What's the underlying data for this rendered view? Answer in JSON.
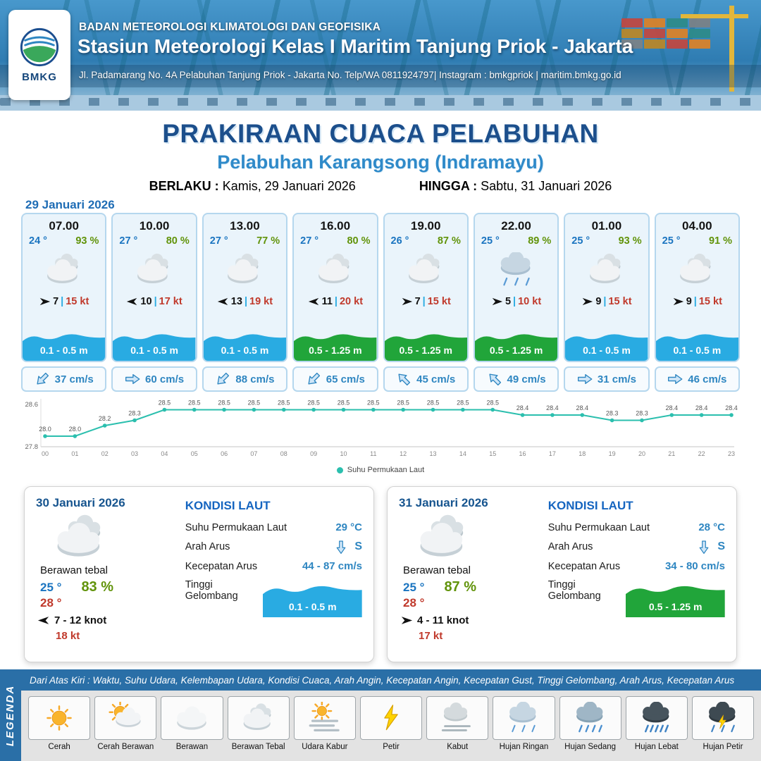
{
  "header": {
    "logo_text": "BMKG",
    "org": "BADAN METEOROLOGI KLIMATOLOGI DAN GEOFISIKA",
    "station": "Stasiun Meteorologi Kelas I Maritim Tanjung Priok - Jakarta",
    "address": "Jl. Padamarang No. 4A Pelabuhan Tanjung Priok - Jakarta No. Telp/WA 0811924797| Instagram : bmkgpriok | maritim.bmkg.go.id"
  },
  "title": {
    "main": "PRAKIRAAN CUACA PELABUHAN",
    "sub": "Pelabuhan Karangsong (Indramayu)",
    "valid_label": "BERLAKU :",
    "valid_value": "Kamis, 29 Januari 2026",
    "until_label": "HINGGA :",
    "until_value": "Sabtu, 31 Januari 2026"
  },
  "labels": {
    "wind_separator": "|"
  },
  "forecast": {
    "date": "29 Januari 2026",
    "cards": [
      {
        "time": "07.00",
        "temp": "24 °",
        "humidity": "93 %",
        "icon": "berawan-tebal",
        "wind_speed": "7",
        "wind_gust": "15 kt",
        "wind_dir_deg": 0,
        "wave": "0.1 - 0.5 m",
        "wave_level": "low",
        "current_speed": "37 cm/s",
        "current_dir_deg": 135
      },
      {
        "time": "10.00",
        "temp": "27 °",
        "humidity": "80 %",
        "icon": "berawan-tebal",
        "wind_speed": "10",
        "wind_gust": "17 kt",
        "wind_dir_deg": 180,
        "wave": "0.1 - 0.5 m",
        "wave_level": "low",
        "current_speed": "60 cm/s",
        "current_dir_deg": 0
      },
      {
        "time": "13.00",
        "temp": "27 °",
        "humidity": "77 %",
        "icon": "berawan-tebal",
        "wind_speed": "13",
        "wind_gust": "19 kt",
        "wind_dir_deg": 180,
        "wave": "0.1 - 0.5 m",
        "wave_level": "low",
        "current_speed": "88 cm/s",
        "current_dir_deg": 135
      },
      {
        "time": "16.00",
        "temp": "27 °",
        "humidity": "80 %",
        "icon": "berawan-tebal",
        "wind_speed": "11",
        "wind_gust": "20 kt",
        "wind_dir_deg": 180,
        "wave": "0.5 - 1.25 m",
        "wave_level": "mid",
        "current_speed": "65 cm/s",
        "current_dir_deg": 135
      },
      {
        "time": "19.00",
        "temp": "26 °",
        "humidity": "87 %",
        "icon": "berawan-tebal",
        "wind_speed": "7",
        "wind_gust": "15 kt",
        "wind_dir_deg": 0,
        "wave": "0.5 - 1.25 m",
        "wave_level": "mid",
        "current_speed": "45 cm/s",
        "current_dir_deg": 225
      },
      {
        "time": "22.00",
        "temp": "25 °",
        "humidity": "89 %",
        "icon": "hujan-ringan",
        "wind_speed": "5",
        "wind_gust": "10 kt",
        "wind_dir_deg": 0,
        "wave": "0.5 - 1.25 m",
        "wave_level": "mid",
        "current_speed": "49 cm/s",
        "current_dir_deg": 225
      },
      {
        "time": "01.00",
        "temp": "25 °",
        "humidity": "93 %",
        "icon": "berawan-tebal",
        "wind_speed": "9",
        "wind_gust": "15 kt",
        "wind_dir_deg": 0,
        "wave": "0.1 - 0.5 m",
        "wave_level": "low",
        "current_speed": "31 cm/s",
        "current_dir_deg": 0
      },
      {
        "time": "04.00",
        "temp": "25 °",
        "humidity": "91 %",
        "icon": "berawan-tebal",
        "wind_speed": "9",
        "wind_gust": "15 kt",
        "wind_dir_deg": 0,
        "wave": "0.1 - 0.5 m",
        "wave_level": "low",
        "current_speed": "46 cm/s",
        "current_dir_deg": 0
      }
    ]
  },
  "chart_data": {
    "type": "line",
    "series_name": "Suhu Permukaan Laut",
    "x": [
      "00",
      "01",
      "02",
      "03",
      "04",
      "05",
      "06",
      "07",
      "08",
      "09",
      "10",
      "11",
      "12",
      "13",
      "14",
      "15",
      "16",
      "17",
      "18",
      "19",
      "20",
      "21",
      "22",
      "23"
    ],
    "values": [
      28.0,
      28.0,
      28.2,
      28.3,
      28.5,
      28.5,
      28.5,
      28.5,
      28.5,
      28.5,
      28.5,
      28.5,
      28.5,
      28.5,
      28.5,
      28.5,
      28.4,
      28.4,
      28.4,
      28.3,
      28.3,
      28.4,
      28.4,
      28.4
    ],
    "ylim": [
      27.8,
      28.6
    ],
    "yticks": [
      27.8,
      28.6
    ],
    "xlabel": "",
    "ylabel": "",
    "line_color": "#2bbfae",
    "grid": false,
    "legend_position": "bottom"
  },
  "daily": [
    {
      "date": "30 Januari 2026",
      "icon": "berawan-tebal",
      "condition": "Berawan tebal",
      "temp_min": "25 °",
      "temp_max": "28 °",
      "humidity": "83 %",
      "wind": "7 - 12 knot",
      "wind_dir_deg": 180,
      "gust": "18 kt",
      "sea": {
        "title": "KONDISI LAUT",
        "sst_label": "Suhu Permukaan Laut",
        "sst": "29 °C",
        "current_dir_label": "Arah Arus",
        "current_dir": "S",
        "current_dir_deg": 90,
        "current_speed_label": "Kecepatan Arus",
        "current_speed": "44 - 87 cm/s",
        "wave_label": "Tinggi Gelombang",
        "wave": "0.1 - 0.5 m",
        "wave_level": "low"
      }
    },
    {
      "date": "31 Januari 2026",
      "icon": "berawan-tebal",
      "condition": "Berawan tebal",
      "temp_min": "25 °",
      "temp_max": "28 °",
      "humidity": "87 %",
      "wind": "4 - 11 knot",
      "wind_dir_deg": 0,
      "gust": "17 kt",
      "sea": {
        "title": "KONDISI LAUT",
        "sst_label": "Suhu Permukaan Laut",
        "sst": "28 °C",
        "current_dir_label": "Arah Arus",
        "current_dir": "S",
        "current_dir_deg": 90,
        "current_speed_label": "Kecepatan Arus",
        "current_speed": "34 - 80 cm/s",
        "wave_label": "Tinggi Gelombang",
        "wave": "0.5 - 1.25 m",
        "wave_level": "mid"
      }
    }
  ],
  "legend": {
    "title": "LEGENDA",
    "description": "Dari Atas Kiri : Waktu, Suhu Udara, Kelembapan Udara, Kondisi Cuaca, Arah Angin, Kecepatan Angin, Kecepatan Gust, Tinggi Gelombang, Arah Arus, Kecepatan Arus",
    "items": [
      {
        "label": "Cerah",
        "icon": "cerah"
      },
      {
        "label": "Cerah Berawan",
        "icon": "cerah-berawan"
      },
      {
        "label": "Berawan",
        "icon": "berawan"
      },
      {
        "label": "Berawan Tebal",
        "icon": "berawan-tebal"
      },
      {
        "label": "Udara Kabur",
        "icon": "udara-kabur"
      },
      {
        "label": "Petir",
        "icon": "petir"
      },
      {
        "label": "Kabut",
        "icon": "kabut"
      },
      {
        "label": "Hujan Ringan",
        "icon": "hujan-ringan"
      },
      {
        "label": "Hujan Sedang",
        "icon": "hujan-sedang"
      },
      {
        "label": "Hujan Lebat",
        "icon": "hujan-lebat"
      },
      {
        "label": "Hujan Petir",
        "icon": "hujan-petir"
      }
    ]
  },
  "colors": {
    "accent_blue": "#2e86c1",
    "temp_blue": "#1a74c0",
    "humidity_green": "#61930a",
    "gust_red": "#c0392b",
    "wave_blue": "#29abe2",
    "wave_green": "#21a53a",
    "line_teal": "#2bbfae",
    "title_navy": "#1c4f8c",
    "header_blue": "#2f7cb2"
  }
}
